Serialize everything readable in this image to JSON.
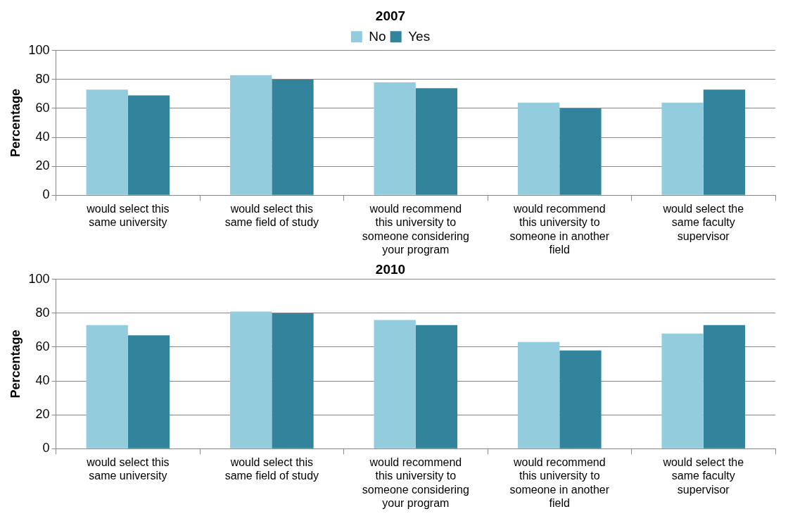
{
  "chart_data": [
    {
      "type": "bar",
      "title": "2007",
      "ylabel": "Percentage",
      "categories": [
        "would select this same university",
        "would select this same field of study",
        "would recommend this university to someone considering your program",
        "would recommend this university to someone in another field",
        "would select the same faculty supervisor"
      ],
      "series": [
        {
          "name": "No",
          "color": "#93cddd",
          "values": [
            73,
            83,
            78,
            64,
            64
          ]
        },
        {
          "name": "Yes",
          "color": "#31849b",
          "values": [
            69,
            80,
            74,
            60,
            73
          ]
        }
      ],
      "ylim": [
        0,
        100
      ],
      "yticks": [
        0,
        20,
        40,
        60,
        80,
        100
      ],
      "grid": "y",
      "legend": "top"
    },
    {
      "type": "bar",
      "title": "2010",
      "ylabel": "Percentage",
      "categories": [
        "would select this same university",
        "would select this same field of study",
        "would recommend this university to someone considering your program",
        "would recommend this university to someone in another field",
        "would select the same faculty supervisor"
      ],
      "series": [
        {
          "color": "#93cddd",
          "values": [
            73,
            81,
            76,
            63,
            68
          ]
        },
        {
          "color": "#31849b",
          "values": [
            67,
            80,
            73,
            58,
            73
          ]
        }
      ],
      "ylim": [
        0,
        100
      ],
      "yticks": [
        0,
        20,
        40,
        60,
        80,
        100
      ],
      "grid": "y"
    }
  ]
}
